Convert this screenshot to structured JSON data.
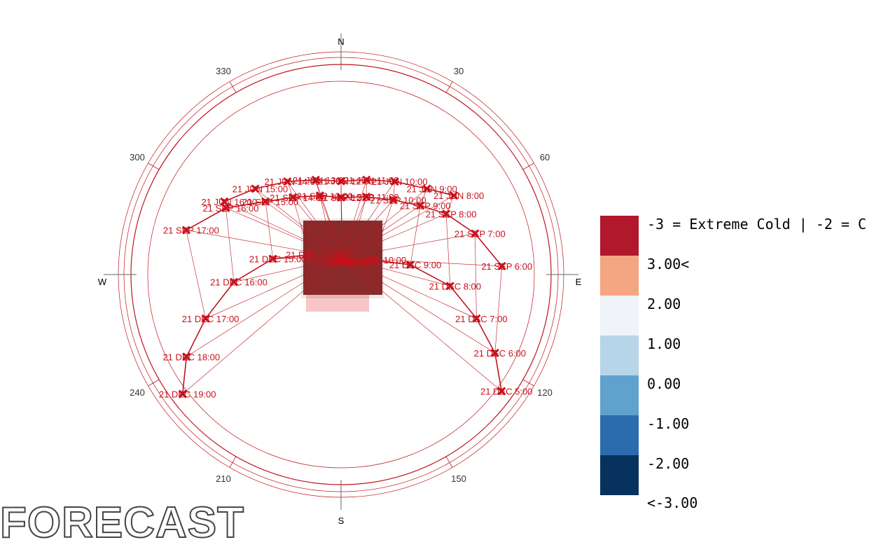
{
  "compass": {
    "north": "N",
    "south": "S",
    "east": "E",
    "west": "W",
    "degree_labels": [
      {
        "deg": 30,
        "label": "30"
      },
      {
        "deg": 60,
        "label": "60"
      },
      {
        "deg": 120,
        "label": "120"
      },
      {
        "deg": 150,
        "label": "150"
      },
      {
        "deg": 210,
        "label": "210"
      },
      {
        "deg": 240,
        "label": "240"
      },
      {
        "deg": 300,
        "label": "300"
      },
      {
        "deg": 330,
        "label": "330"
      }
    ]
  },
  "sun_positions": [
    {
      "label": "21 JUN 12:00",
      "azimuth": 0,
      "altitude": 50
    },
    {
      "label": "21 JUN 11:00",
      "azimuth": 15,
      "altitude": 48
    },
    {
      "label": "21 JUN 13:00",
      "azimuth": 345,
      "altitude": 48
    },
    {
      "label": "21 JUN 10:00",
      "azimuth": 30,
      "altitude": 44
    },
    {
      "label": "21 JUN 14:00",
      "azimuth": 330,
      "altitude": 44
    },
    {
      "label": "21 JUN 9:00",
      "azimuth": 45,
      "altitude": 38
    },
    {
      "label": "21 JUN 15:00",
      "azimuth": 315,
      "altitude": 38
    },
    {
      "label": "21 JUN 8:00",
      "azimuth": 55,
      "altitude": 31
    },
    {
      "label": "21 JUN 16:00",
      "azimuth": 302,
      "altitude": 31
    },
    {
      "label": "21 SEP 12:00",
      "azimuth": 0,
      "altitude": 57
    },
    {
      "label": "21 SEP 11:00",
      "azimuth": 18,
      "altitude": 55
    },
    {
      "label": "21 SEP 13:00",
      "azimuth": 345,
      "altitude": 55
    },
    {
      "label": "21 SEP 10:00",
      "azimuth": 35,
      "altitude": 51
    },
    {
      "label": "21 SEP 14:00",
      "azimuth": 328,
      "altitude": 51
    },
    {
      "label": "21 SEP 9:00",
      "azimuth": 49,
      "altitude": 45
    },
    {
      "label": "21 SEP 15:00",
      "azimuth": 314,
      "altitude": 45
    },
    {
      "label": "21 SEP 8:00",
      "azimuth": 60,
      "altitude": 38
    },
    {
      "label": "21 SEP 16:00",
      "azimuth": 300,
      "altitude": 33
    },
    {
      "label": "21 SEP 7:00",
      "azimuth": 73,
      "altitude": 30
    },
    {
      "label": "21 SEP 17:00",
      "azimuth": 286,
      "altitude": 21
    },
    {
      "label": "21 SEP 6:00",
      "azimuth": 87,
      "altitude": 21
    },
    {
      "label": "21 DEC 12:00",
      "azimuth": 3,
      "altitude": 84
    },
    {
      "label": "21 DEC 11:00",
      "azimuth": 28,
      "altitude": 84
    },
    {
      "label": "21 DEC 13:00",
      "azimuth": 335,
      "altitude": 84
    },
    {
      "label": "21 DEC 10:00",
      "azimuth": 65,
      "altitude": 75
    },
    {
      "label": "21 DEC 14:00",
      "azimuth": 302,
      "altitude": 74
    },
    {
      "label": "21 DEC 9:00",
      "azimuth": 82,
      "altitude": 60
    },
    {
      "label": "21 DEC 15:00",
      "azimuth": 283,
      "altitude": 60
    },
    {
      "label": "21 DEC 8:00",
      "azimuth": 96,
      "altitude": 43
    },
    {
      "label": "21 DEC 16:00",
      "azimuth": 266,
      "altitude": 44
    },
    {
      "label": "21 DEC 7:00",
      "azimuth": 108,
      "altitude": 29
    },
    {
      "label": "21 DEC 17:00",
      "azimuth": 252,
      "altitude": 29
    },
    {
      "label": "21 DEC 6:00",
      "azimuth": 117,
      "altitude": 16
    },
    {
      "label": "21 DEC 18:00",
      "azimuth": 242,
      "altitude": 15
    },
    {
      "label": "21 DEC 5:00",
      "azimuth": 126,
      "altitude": 5
    },
    {
      "label": "21 DEC 19:00",
      "azimuth": 233,
      "altitude": 5
    }
  ],
  "legend": {
    "items": [
      {
        "label": "-3 = Extreme Cold | -2 = C",
        "color": "#b2182b"
      },
      {
        "label": "3.00<",
        "color": "#f4a582"
      },
      {
        "label": "2.00",
        "color": "#f0f4f8"
      },
      {
        "label": "1.00",
        "color": "#b7d5e8"
      },
      {
        "label": "0.00",
        "color": "#5fa2cd"
      },
      {
        "label": "-1.00",
        "color": "#2b6cae"
      },
      {
        "label": "-2.00",
        "color": "#08325e"
      }
    ],
    "bottom_label": "<-3.00"
  },
  "colors": {
    "sunpath": "#c0141c",
    "marker": "#c8101a",
    "building": "#8a2a2a"
  },
  "corner_text": "FORECAST"
}
